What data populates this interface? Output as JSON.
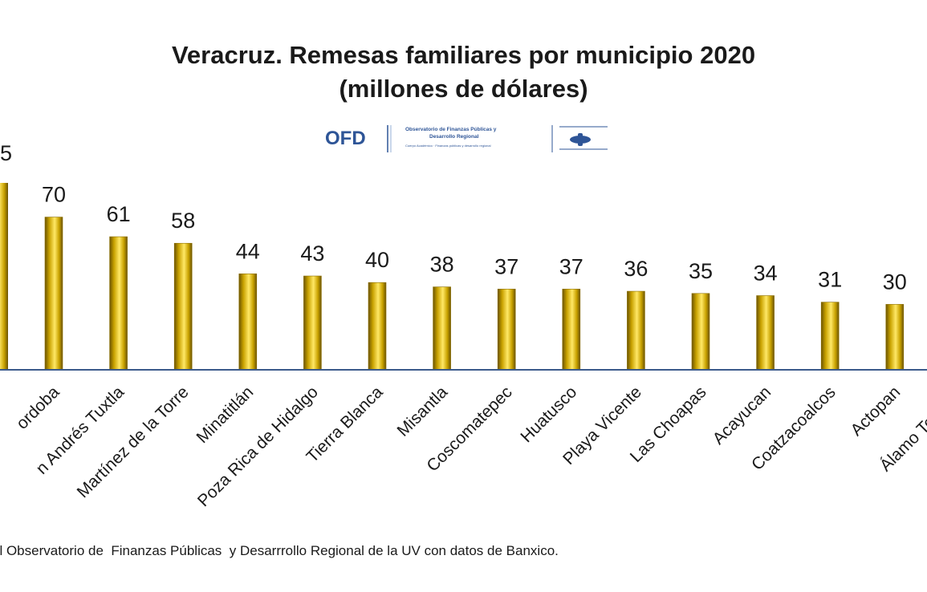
{
  "chart_data": {
    "type": "bar",
    "title": "Veracruz. Remesas familiares por municipio 2020",
    "subtitle": "(millones de dólares)",
    "clipped_first_value_label": "5",
    "categories": [
      "Córdoba",
      "San Andrés Tuxtla",
      "Martínez de la Torre",
      "Minatitlán",
      "Poza Rica de Hidalgo",
      "Tierra Blanca",
      "Misantla",
      "Coscomatepec",
      "Huatusco",
      "Playa Vicente",
      "Las Choapas",
      "Acayucan",
      "Coatzacoalcos",
      "Actopan",
      "Álamo Temapache"
    ],
    "visible_category_labels": [
      "ordoba",
      "n Andrés Tuxtla",
      "Martínez de la Torre",
      "Minatitlán",
      "Poza Rica de Hidalgo",
      "Tierra Blanca",
      "Misantla",
      "Coscomatepec",
      "Huatusco",
      "Playa Vicente",
      "Las Choapas",
      "Acayucan",
      "Coatzacoalcos",
      "Actopan",
      "Álamo Temapa"
    ],
    "values": [
      70,
      61,
      58,
      44,
      43,
      40,
      38,
      37,
      37,
      36,
      35,
      34,
      31,
      30,
      null
    ],
    "value_labels": [
      "70",
      "61",
      "58",
      "44",
      "43",
      "40",
      "38",
      "37",
      "37",
      "36",
      "35",
      "34",
      "31",
      "30",
      ""
    ],
    "grid": false,
    "legend": "none",
    "bar_color": "#c9a200",
    "axis_color": "#3b5a8c"
  },
  "logo": {
    "text": "OFD",
    "line1": "Observatorio de Finanzas Públicas y",
    "line2": "Desarrollo Regional",
    "line3": "Cuerpo Académico · Finanzas públicas y desarrollo regional",
    "color": "#2e5597"
  },
  "source": "el Observatorio de  Finanzas Públicas  y Desarrrollo Regional de la UV con datos de Banxico."
}
